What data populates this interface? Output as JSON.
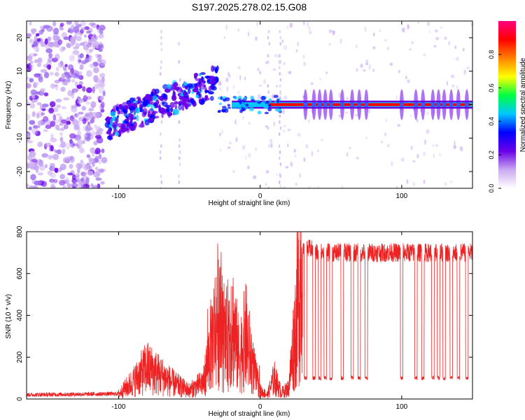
{
  "title": "S197.2025.278.02.15.G08",
  "chart_data": [
    {
      "type": "heatmap",
      "name": "spectrogram",
      "xlabel": "Height of straight line (km)",
      "ylabel": "Frequency (Hz)",
      "xlim": [
        -165,
        150
      ],
      "ylim": [
        -25,
        25
      ],
      "xticks": [
        -100,
        0,
        100
      ],
      "yticks": [
        -20,
        -10,
        0,
        10,
        20
      ],
      "colorbar": {
        "label": "Normalized spectral amplitude",
        "range": [
          0,
          1
        ],
        "ticks": [
          "0.0",
          "0.2",
          "0.4",
          "0.6",
          "0.8"
        ],
        "colormap": [
          "#ffffff",
          "#c9a9f0",
          "#6a00e8",
          "#0000ff",
          "#00c8ff",
          "#00ff40",
          "#ffff00",
          "#ff8000",
          "#ff0000",
          "#ff0080"
        ]
      },
      "features": {
        "noise_region_x": [
          -165,
          -110
        ],
        "rising_trend": {
          "x": [
            -108,
            -30
          ],
          "y": [
            -6,
            7
          ]
        },
        "carrier_line": {
          "x": [
            -20,
            150
          ],
          "y": 0
        },
        "vertical_streaks_x": [
          -70,
          -57,
          6,
          14
        ]
      }
    },
    {
      "type": "line",
      "name": "snr",
      "xlabel": "Height of straight line (km)",
      "ylabel": "SNR (10 * v/v)",
      "xlim": [
        -165,
        150
      ],
      "ylim": [
        0,
        800
      ],
      "xticks": [
        -100,
        0,
        100
      ],
      "yticks": [
        0,
        200,
        400,
        600,
        800
      ],
      "color": "#ee2222",
      "series_outline": {
        "x": [
          -165,
          -100,
          -90,
          -80,
          -70,
          -60,
          -50,
          -40,
          -35,
          -30,
          -25,
          -20,
          -15,
          -10,
          -5,
          0,
          5,
          10,
          15,
          20,
          25,
          30,
          35,
          40,
          150
        ],
        "y": [
          20,
          25,
          80,
          150,
          110,
          70,
          40,
          80,
          250,
          400,
          250,
          380,
          200,
          300,
          150,
          40,
          20,
          100,
          30,
          50,
          350,
          700,
          720,
          700,
          700
        ]
      },
      "dropout_x": [
        32,
        38,
        42,
        46,
        50,
        58,
        65,
        70,
        75,
        100,
        110,
        115,
        122,
        126,
        130,
        135,
        140,
        146
      ],
      "dropout_level": 100
    }
  ]
}
